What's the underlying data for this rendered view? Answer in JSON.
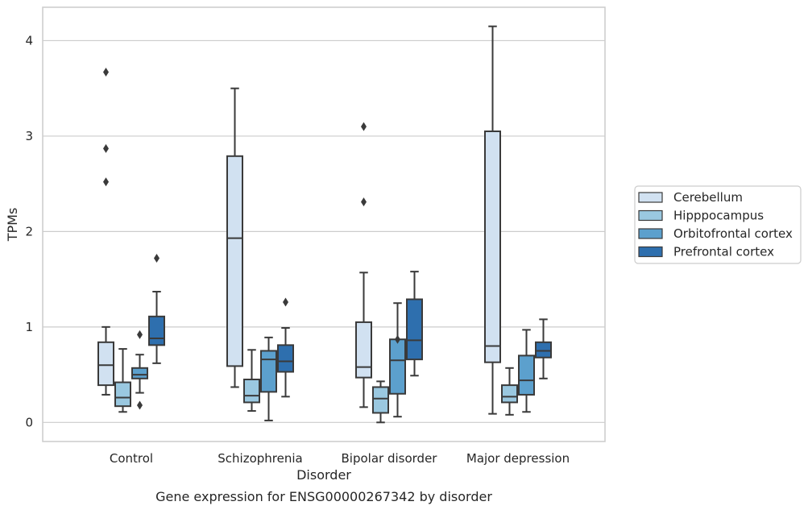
{
  "chart_data": {
    "type": "box",
    "title": "",
    "caption": "Gene expression for ENSG00000267342 by disorder",
    "xlabel": "Disorder",
    "ylabel": "TPMs",
    "categories": [
      "Control",
      "Schizophrenia",
      "Bipolar disorder",
      "Major depression"
    ],
    "ylim": [
      -0.2,
      4.35
    ],
    "yticks": [
      0,
      1,
      2,
      3,
      4
    ],
    "yticklabels": [
      "0",
      "1",
      "2",
      "3",
      "4"
    ],
    "grid": true,
    "legend_position": "right",
    "series": [
      {
        "name": "Cerebellum",
        "color": "#d1e1f1",
        "boxes": [
          {
            "whisker_low": 0.29,
            "q1": 0.39,
            "median": 0.6,
            "q3": 0.84,
            "whisker_high": 1.0,
            "outliers": [
              2.52,
              2.87,
              3.67
            ]
          },
          {
            "whisker_low": 0.37,
            "q1": 0.59,
            "median": 1.93,
            "q3": 2.79,
            "whisker_high": 3.5,
            "outliers": []
          },
          {
            "whisker_low": 0.16,
            "q1": 0.47,
            "median": 0.58,
            "q3": 1.05,
            "whisker_high": 1.57,
            "outliers": [
              2.31,
              3.1
            ]
          },
          {
            "whisker_low": 0.09,
            "q1": 0.63,
            "median": 0.8,
            "q3": 3.05,
            "whisker_high": 4.15,
            "outliers": []
          }
        ]
      },
      {
        "name": "Hipppocampus",
        "color": "#9ac8e0",
        "boxes": [
          {
            "whisker_low": 0.11,
            "q1": 0.17,
            "median": 0.26,
            "q3": 0.42,
            "whisker_high": 0.77,
            "outliers": []
          },
          {
            "whisker_low": 0.12,
            "q1": 0.21,
            "median": 0.28,
            "q3": 0.45,
            "whisker_high": 0.76,
            "outliers": []
          },
          {
            "whisker_low": 0.0,
            "q1": 0.1,
            "median": 0.25,
            "q3": 0.37,
            "whisker_high": 0.43,
            "outliers": []
          },
          {
            "whisker_low": 0.08,
            "q1": 0.21,
            "median": 0.27,
            "q3": 0.39,
            "whisker_high": 0.57,
            "outliers": []
          }
        ]
      },
      {
        "name": "Orbitofrontal cortex",
        "color": "#5ca0cd",
        "boxes": [
          {
            "whisker_low": 0.31,
            "q1": 0.46,
            "median": 0.5,
            "q3": 0.57,
            "whisker_high": 0.71,
            "outliers": [
              0.18,
              0.92
            ]
          },
          {
            "whisker_low": 0.02,
            "q1": 0.32,
            "median": 0.66,
            "q3": 0.75,
            "whisker_high": 0.89,
            "outliers": []
          },
          {
            "whisker_low": 0.06,
            "q1": 0.3,
            "median": 0.65,
            "q3": 0.87,
            "whisker_high": 1.25,
            "outliers": [
              0.87
            ]
          },
          {
            "whisker_low": 0.11,
            "q1": 0.29,
            "median": 0.44,
            "q3": 0.7,
            "whisker_high": 0.97,
            "outliers": []
          }
        ]
      },
      {
        "name": "Prefrontal cortex",
        "color": "#2e6fae",
        "boxes": [
          {
            "whisker_low": 0.62,
            "q1": 0.81,
            "median": 0.88,
            "q3": 1.11,
            "whisker_high": 1.37,
            "outliers": [
              1.72
            ]
          },
          {
            "whisker_low": 0.27,
            "q1": 0.53,
            "median": 0.64,
            "q3": 0.81,
            "whisker_high": 0.99,
            "outliers": [
              1.26
            ]
          },
          {
            "whisker_low": 0.49,
            "q1": 0.66,
            "median": 0.86,
            "q3": 1.29,
            "whisker_high": 1.58,
            "outliers": []
          },
          {
            "whisker_low": 0.46,
            "q1": 0.68,
            "median": 0.75,
            "q3": 0.84,
            "whisker_high": 1.08,
            "outliers": []
          }
        ]
      }
    ]
  }
}
